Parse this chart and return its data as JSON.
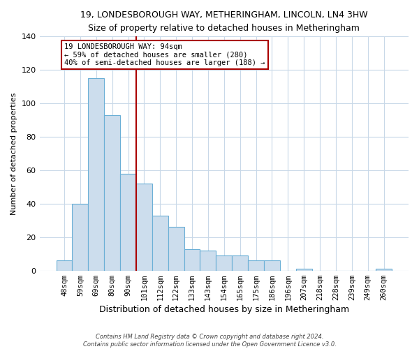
{
  "title": "19, LONDESBOROUGH WAY, METHERINGHAM, LINCOLN, LN4 3HW",
  "subtitle": "Size of property relative to detached houses in Metheringham",
  "xlabel": "Distribution of detached houses by size in Metheringham",
  "ylabel": "Number of detached properties",
  "bar_labels": [
    "48sqm",
    "59sqm",
    "69sqm",
    "80sqm",
    "90sqm",
    "101sqm",
    "112sqm",
    "122sqm",
    "133sqm",
    "143sqm",
    "154sqm",
    "165sqm",
    "175sqm",
    "186sqm",
    "196sqm",
    "207sqm",
    "218sqm",
    "228sqm",
    "239sqm",
    "249sqm",
    "260sqm"
  ],
  "bar_values": [
    6,
    40,
    115,
    93,
    58,
    52,
    33,
    26,
    13,
    12,
    9,
    9,
    6,
    6,
    0,
    1,
    0,
    0,
    0,
    0,
    1
  ],
  "bar_color": "#ccdded",
  "bar_edge_color": "#6aafd6",
  "ylim": [
    0,
    140
  ],
  "yticks": [
    0,
    20,
    40,
    60,
    80,
    100,
    120,
    140
  ],
  "vline_x": 4.5,
  "vline_color": "#aa0000",
  "annotation_text": "19 LONDESBOROUGH WAY: 94sqm\n← 59% of detached houses are smaller (280)\n40% of semi-detached houses are larger (188) →",
  "annotation_box_color": "#ffffff",
  "annotation_border_color": "#aa0000",
  "footer_line1": "Contains HM Land Registry data © Crown copyright and database right 2024.",
  "footer_line2": "Contains public sector information licensed under the Open Government Licence v3.0.",
  "bg_color": "#ffffff",
  "grid_color": "#c8d8e8"
}
